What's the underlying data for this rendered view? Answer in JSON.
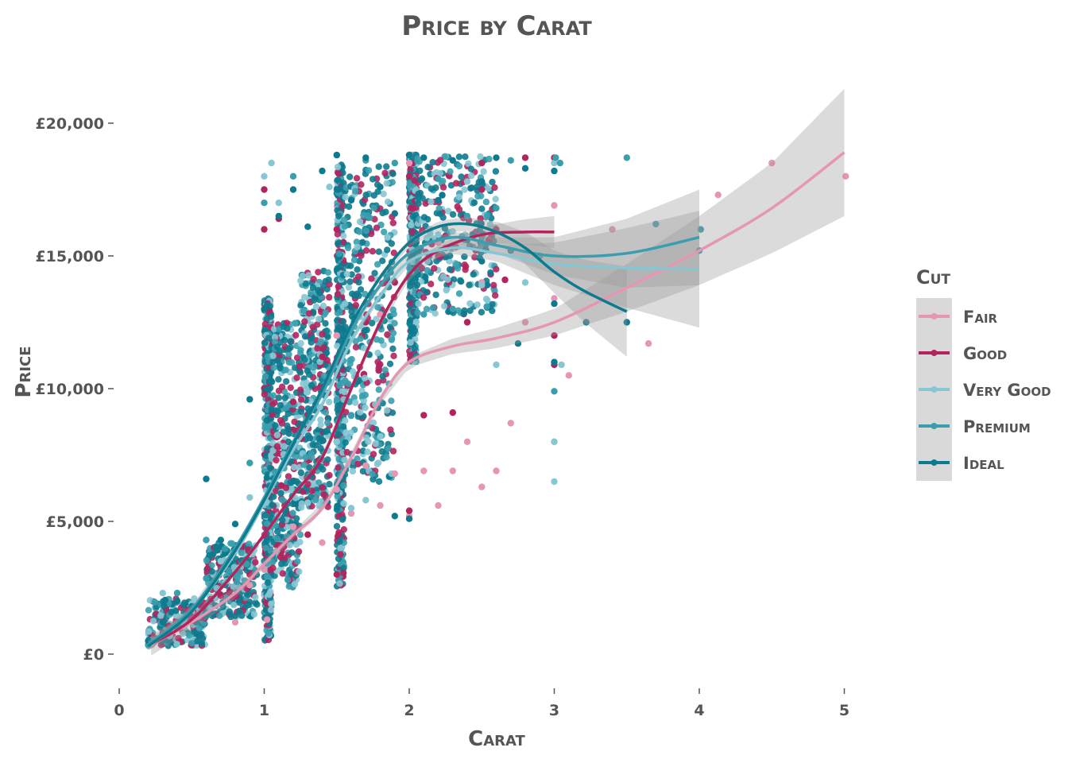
{
  "chart_data": {
    "type": "scatter",
    "title": "Price by Carat",
    "xlabel": "Carat",
    "ylabel": "Price",
    "xlim": [
      0,
      5.25
    ],
    "ylim": [
      -700,
      20800
    ],
    "x_ticks": [
      {
        "value": 0,
        "label": "0"
      },
      {
        "value": 1,
        "label": "1"
      },
      {
        "value": 2,
        "label": "2"
      },
      {
        "value": 3,
        "label": "3"
      },
      {
        "value": 4,
        "label": "4"
      },
      {
        "value": 5,
        "label": "5"
      }
    ],
    "y_ticks": [
      {
        "value": 0,
        "label": "£0"
      },
      {
        "value": 5000,
        "label": "£5,000"
      },
      {
        "value": 10000,
        "label": "£10,000"
      },
      {
        "value": 15000,
        "label": "£15,000"
      },
      {
        "value": 20000,
        "label": "£20,000"
      }
    ],
    "grid": false,
    "legend_position": "right",
    "legend_title": "Cut",
    "series": [
      {
        "name": "Fair",
        "color": "#E596B4",
        "smooth": [
          [
            0.22,
            350
          ],
          [
            0.5,
            1200
          ],
          [
            0.8,
            2300
          ],
          [
            1.0,
            3400
          ],
          [
            1.2,
            4500
          ],
          [
            1.4,
            5500
          ],
          [
            1.6,
            7400
          ],
          [
            1.8,
            9600
          ],
          [
            2.0,
            11000
          ],
          [
            2.3,
            11600
          ],
          [
            2.6,
            11900
          ],
          [
            3.0,
            12500
          ],
          [
            3.5,
            13800
          ],
          [
            4.0,
            15200
          ],
          [
            4.5,
            16800
          ],
          [
            5.0,
            18900
          ]
        ],
        "band_halfwidth": [
          [
            0.22,
            400
          ],
          [
            1.0,
            150
          ],
          [
            2.0,
            200
          ],
          [
            3.0,
            500
          ],
          [
            3.5,
            900
          ],
          [
            4.0,
            1300
          ],
          [
            4.5,
            1700
          ],
          [
            5.0,
            2400
          ]
        ],
        "points": [
          [
            0.22,
            337
          ],
          [
            0.5,
            1600
          ],
          [
            0.6,
            4300
          ],
          [
            0.8,
            1200
          ],
          [
            0.9,
            2600
          ],
          [
            1.0,
            3200
          ],
          [
            1.02,
            1300
          ],
          [
            1.2,
            4800
          ],
          [
            1.4,
            4200
          ],
          [
            1.5,
            6200
          ],
          [
            1.6,
            5300
          ],
          [
            1.7,
            7100
          ],
          [
            1.8,
            5600
          ],
          [
            1.9,
            6800
          ],
          [
            2.0,
            5200
          ],
          [
            2.1,
            6900
          ],
          [
            2.2,
            5600
          ],
          [
            2.3,
            6900
          ],
          [
            2.4,
            8000
          ],
          [
            2.5,
            6300
          ],
          [
            2.6,
            6900
          ],
          [
            2.7,
            8700
          ],
          [
            2.8,
            12500
          ],
          [
            3.0,
            8000
          ],
          [
            3.0,
            13400
          ],
          [
            3.0,
            16900
          ],
          [
            3.1,
            10500
          ],
          [
            3.4,
            16000
          ],
          [
            3.65,
            11700
          ],
          [
            4.13,
            17300
          ],
          [
            4.5,
            18500
          ],
          [
            5.01,
            18000
          ],
          [
            2.0,
            18500
          ],
          [
            2.2,
            15500
          ],
          [
            2.5,
            14000
          ],
          [
            1.8,
            12800
          ],
          [
            1.5,
            12000
          ]
        ]
      },
      {
        "name": "Good",
        "color": "#B2245E",
        "smooth": [
          [
            0.23,
            400
          ],
          [
            0.5,
            1300
          ],
          [
            0.8,
            3100
          ],
          [
            1.0,
            4500
          ],
          [
            1.2,
            6000
          ],
          [
            1.4,
            7400
          ],
          [
            1.6,
            10000
          ],
          [
            1.8,
            12500
          ],
          [
            2.0,
            14300
          ],
          [
            2.2,
            15200
          ],
          [
            2.5,
            15800
          ],
          [
            2.8,
            15900
          ],
          [
            3.0,
            15900
          ]
        ],
        "band_halfwidth": [
          [
            0.23,
            150
          ],
          [
            1.0,
            100
          ],
          [
            2.0,
            200
          ],
          [
            2.5,
            300
          ],
          [
            3.0,
            600
          ]
        ],
        "points": [
          [
            0.3,
            800
          ],
          [
            0.5,
            1400
          ],
          [
            0.7,
            2200
          ],
          [
            0.9,
            3000
          ],
          [
            1.0,
            16000
          ],
          [
            1.0,
            17500
          ],
          [
            1.1,
            4100
          ],
          [
            1.1,
            16400
          ],
          [
            1.2,
            9500
          ],
          [
            1.3,
            4500
          ],
          [
            1.4,
            11200
          ],
          [
            1.5,
            3000
          ],
          [
            1.5,
            16000
          ],
          [
            1.7,
            12500
          ],
          [
            1.9,
            14000
          ],
          [
            2.0,
            5400
          ],
          [
            2.0,
            18000
          ],
          [
            2.1,
            9000
          ],
          [
            2.2,
            15000
          ],
          [
            2.3,
            9100
          ],
          [
            2.4,
            12500
          ],
          [
            2.5,
            17500
          ],
          [
            2.6,
            16000
          ],
          [
            2.66,
            14100
          ],
          [
            2.8,
            18700
          ],
          [
            3.0,
            18700
          ],
          [
            3.0,
            12000
          ],
          [
            3.0,
            10900
          ],
          [
            2.5,
            18500
          ]
        ]
      },
      {
        "name": "Very Good",
        "color": "#86C7D3",
        "smooth": [
          [
            0.23,
            400
          ],
          [
            0.5,
            1600
          ],
          [
            0.8,
            3800
          ],
          [
            1.0,
            5700
          ],
          [
            1.2,
            7700
          ],
          [
            1.4,
            9400
          ],
          [
            1.6,
            11800
          ],
          [
            1.8,
            13500
          ],
          [
            2.0,
            14800
          ],
          [
            2.3,
            15300
          ],
          [
            2.6,
            15100
          ],
          [
            3.0,
            14700
          ],
          [
            3.5,
            14550
          ],
          [
            4.0,
            14500
          ]
        ],
        "band_halfwidth": [
          [
            0.23,
            150
          ],
          [
            1.0,
            80
          ],
          [
            2.0,
            150
          ],
          [
            2.6,
            300
          ],
          [
            3.0,
            800
          ],
          [
            3.5,
            1500
          ],
          [
            4.0,
            2200
          ]
        ],
        "points": [
          [
            0.3,
            2300
          ],
          [
            0.5,
            1900
          ],
          [
            0.7,
            3500
          ],
          [
            0.9,
            5900
          ],
          [
            1.0,
            18000
          ],
          [
            1.05,
            18500
          ],
          [
            1.1,
            17000
          ],
          [
            1.3,
            5700
          ],
          [
            1.5,
            8000
          ],
          [
            1.6,
            5500
          ],
          [
            1.7,
            5800
          ],
          [
            1.8,
            8200
          ],
          [
            2.0,
            18800
          ],
          [
            2.2,
            15800
          ],
          [
            2.4,
            17800
          ],
          [
            2.5,
            13900
          ],
          [
            2.6,
            10900
          ],
          [
            2.8,
            14000
          ],
          [
            3.0,
            6500
          ],
          [
            3.0,
            8000
          ],
          [
            3.0,
            18500
          ],
          [
            3.05,
            10900
          ],
          [
            1.45,
            17600
          ],
          [
            1.85,
            15700
          ]
        ]
      },
      {
        "name": "Premium",
        "color": "#3A9EAE",
        "smooth": [
          [
            0.2,
            350
          ],
          [
            0.5,
            1700
          ],
          [
            0.8,
            4000
          ],
          [
            1.0,
            5900
          ],
          [
            1.2,
            8000
          ],
          [
            1.4,
            9800
          ],
          [
            1.6,
            12200
          ],
          [
            1.8,
            13900
          ],
          [
            2.0,
            15100
          ],
          [
            2.3,
            15700
          ],
          [
            2.6,
            15400
          ],
          [
            3.0,
            15000
          ],
          [
            3.5,
            15100
          ],
          [
            4.0,
            15700
          ]
        ],
        "band_halfwidth": [
          [
            0.2,
            150
          ],
          [
            1.0,
            80
          ],
          [
            2.0,
            150
          ],
          [
            2.6,
            300
          ],
          [
            3.0,
            700
          ],
          [
            3.5,
            1300
          ],
          [
            4.0,
            1800
          ]
        ],
        "points": [
          [
            0.2,
            345
          ],
          [
            0.4,
            2300
          ],
          [
            0.6,
            4300
          ],
          [
            0.9,
            7200
          ],
          [
            1.0,
            17000
          ],
          [
            1.2,
            18000
          ],
          [
            1.5,
            18800
          ],
          [
            1.7,
            18600
          ],
          [
            1.9,
            18500
          ],
          [
            2.0,
            18800
          ],
          [
            2.1,
            12800
          ],
          [
            2.2,
            17900
          ],
          [
            2.3,
            13000
          ],
          [
            2.4,
            16500
          ],
          [
            2.5,
            15500
          ],
          [
            2.6,
            16800
          ],
          [
            2.7,
            18600
          ],
          [
            3.01,
            18700
          ],
          [
            3.04,
            18500
          ],
          [
            3.5,
            18700
          ],
          [
            3.7,
            16200
          ],
          [
            4.0,
            15200
          ],
          [
            4.01,
            16000
          ],
          [
            2.9,
            15000
          ],
          [
            3.0,
            9900
          ],
          [
            1.6,
            9000
          ]
        ]
      },
      {
        "name": "Ideal",
        "color": "#0E7A8E",
        "smooth": [
          [
            0.2,
            300
          ],
          [
            0.5,
            1600
          ],
          [
            0.8,
            3900
          ],
          [
            1.0,
            5800
          ],
          [
            1.2,
            7900
          ],
          [
            1.4,
            10000
          ],
          [
            1.6,
            12400
          ],
          [
            1.8,
            14200
          ],
          [
            2.0,
            15500
          ],
          [
            2.2,
            16100
          ],
          [
            2.4,
            16200
          ],
          [
            2.6,
            15900
          ],
          [
            2.8,
            15300
          ],
          [
            3.0,
            14400
          ],
          [
            3.2,
            13700
          ],
          [
            3.5,
            12900
          ]
        ],
        "band_halfwidth": [
          [
            0.2,
            150
          ],
          [
            1.0,
            80
          ],
          [
            2.0,
            150
          ],
          [
            2.5,
            300
          ],
          [
            3.0,
            800
          ],
          [
            3.5,
            1700
          ]
        ],
        "points": [
          [
            0.2,
            500
          ],
          [
            0.3,
            1200
          ],
          [
            0.4,
            2000
          ],
          [
            0.5,
            1800
          ],
          [
            0.6,
            6600
          ],
          [
            0.7,
            4300
          ],
          [
            0.8,
            4900
          ],
          [
            0.9,
            9600
          ],
          [
            1.0,
            13000
          ],
          [
            1.1,
            16500
          ],
          [
            1.2,
            17500
          ],
          [
            1.3,
            16100
          ],
          [
            1.4,
            18200
          ],
          [
            1.5,
            18800
          ],
          [
            1.6,
            17100
          ],
          [
            1.7,
            18700
          ],
          [
            1.8,
            17600
          ],
          [
            1.9,
            16600
          ],
          [
            2.0,
            18800
          ],
          [
            2.1,
            18700
          ],
          [
            2.2,
            17100
          ],
          [
            2.3,
            18600
          ],
          [
            2.4,
            15600
          ],
          [
            2.5,
            17800
          ],
          [
            2.6,
            18700
          ],
          [
            2.7,
            15200
          ],
          [
            2.8,
            18300
          ],
          [
            3.0,
            18200
          ],
          [
            3.0,
            13200
          ],
          [
            3.0,
            11000
          ],
          [
            3.22,
            12500
          ],
          [
            3.5,
            12500
          ],
          [
            2.75,
            11700
          ],
          [
            2.5,
            14800
          ],
          [
            1.9,
            5200
          ],
          [
            2.0,
            5100
          ]
        ]
      }
    ],
    "dense_clusters": [
      {
        "x_range": [
          0.2,
          0.6
        ],
        "y_center": 1200,
        "y_spread": 900,
        "n": 240
      },
      {
        "x_range": [
          0.6,
          0.95
        ],
        "y_center": 2800,
        "y_spread": 1400,
        "n": 260
      },
      {
        "x_range": [
          1.0,
          1.05
        ],
        "y_center": 7000,
        "y_spread": 6500,
        "n": 420
      },
      {
        "x_range": [
          1.05,
          1.25
        ],
        "y_center": 7500,
        "y_spread": 5000,
        "n": 360
      },
      {
        "x_range": [
          1.25,
          1.45
        ],
        "y_center": 10000,
        "y_spread": 4500,
        "n": 320
      },
      {
        "x_range": [
          1.5,
          1.55
        ],
        "y_center": 10500,
        "y_spread": 8000,
        "n": 420
      },
      {
        "x_range": [
          1.55,
          1.9
        ],
        "y_center": 12500,
        "y_spread": 6000,
        "n": 360
      },
      {
        "x_range": [
          2.0,
          2.05
        ],
        "y_center": 15000,
        "y_spread": 4000,
        "n": 380
      },
      {
        "x_range": [
          2.05,
          2.6
        ],
        "y_center": 15800,
        "y_spread": 3000,
        "n": 300
      }
    ]
  }
}
